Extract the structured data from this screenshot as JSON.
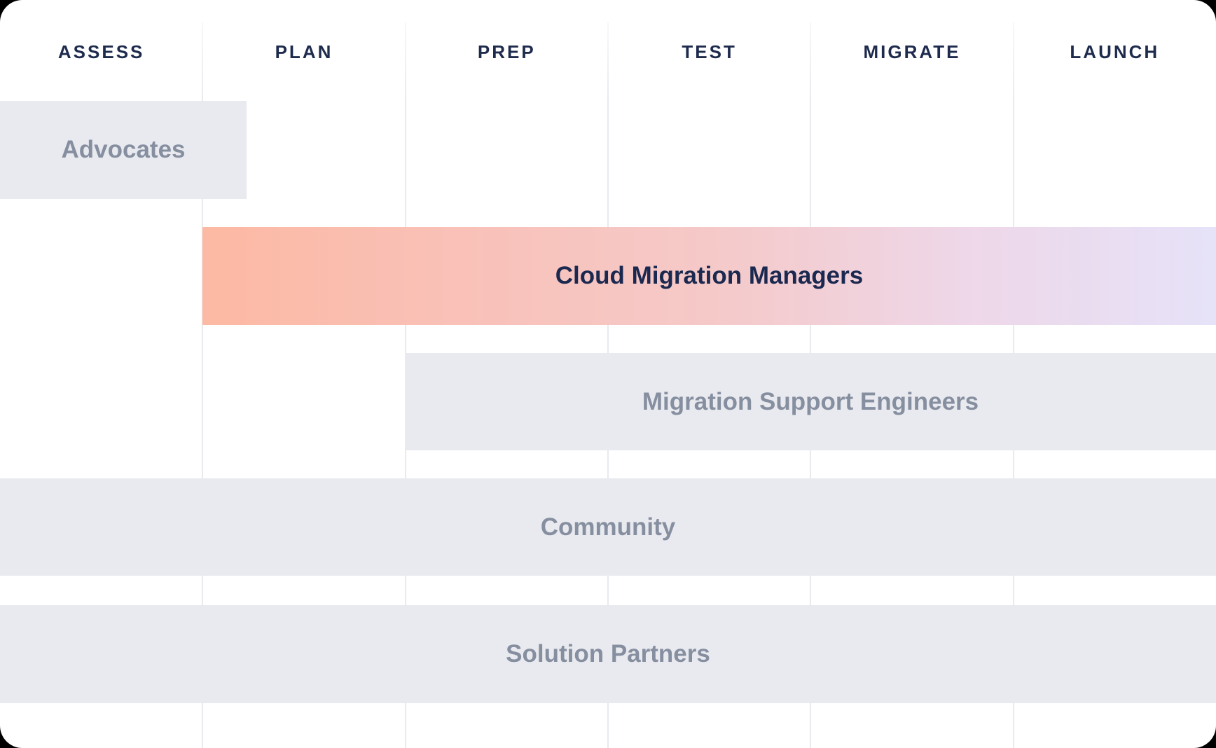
{
  "board": {
    "phases": [
      "ASSESS",
      "PLAN",
      "PREP",
      "TEST",
      "MIGRATE",
      "LAUNCH"
    ],
    "bars": [
      {
        "label": "Advocates",
        "variant": "gray",
        "phase_start": "ASSESS",
        "phase_end": "ASSESS"
      },
      {
        "label": "Cloud Migration Managers",
        "variant": "gradient",
        "phase_start": "PLAN",
        "phase_end": "LAUNCH"
      },
      {
        "label": "Migration Support Engineers",
        "variant": "gray",
        "phase_start": "PREP",
        "phase_end": "LAUNCH"
      },
      {
        "label": "Community",
        "variant": "gray",
        "phase_start": "ASSESS",
        "phase_end": "LAUNCH"
      },
      {
        "label": "Solution Partners",
        "variant": "gray",
        "phase_start": "ASSESS",
        "phase_end": "LAUNCH"
      }
    ],
    "colors": {
      "page_background": "#000000",
      "card_background": "#ffffff",
      "grid_line": "#e8eaee",
      "phase_header_text": "#1e2b4d",
      "bar_gray": "#e9eaef",
      "bar_gray_label": "#868fa0",
      "highlight_gradient_start": "#fcb9a3",
      "highlight_gradient_end": "#e6e2f8",
      "highlight_label": "#1b2950"
    }
  }
}
